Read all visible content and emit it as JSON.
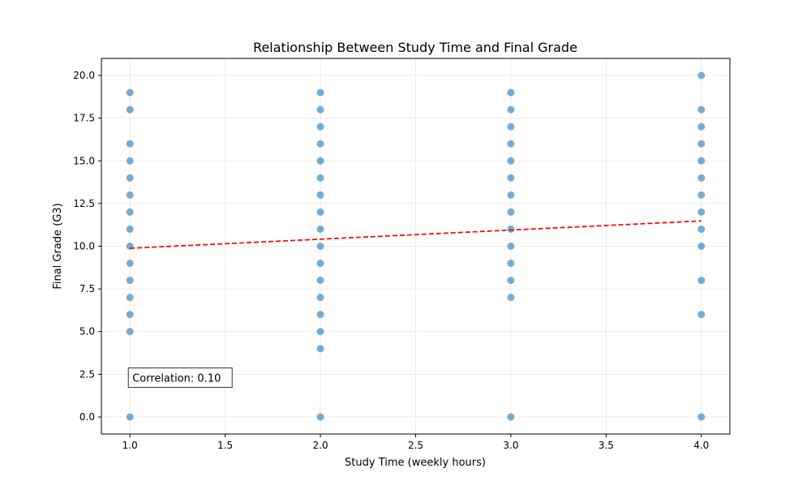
{
  "chart_data": {
    "type": "scatter",
    "title": "Relationship Between Study Time and Final Grade",
    "xlabel": "Study Time (weekly hours)",
    "ylabel": "Final Grade (G3)",
    "xlim": [
      0.85,
      4.15
    ],
    "ylim": [
      -1,
      21
    ],
    "xticks": [
      1.0,
      1.5,
      2.0,
      2.5,
      3.0,
      3.5,
      4.0
    ],
    "yticks": [
      0.0,
      2.5,
      5.0,
      7.5,
      10.0,
      12.5,
      15.0,
      17.5,
      20.0
    ],
    "grid": true,
    "series": [
      {
        "style": "points",
        "color": "#1f77b4",
        "points": [
          [
            1,
            0
          ],
          [
            1,
            5
          ],
          [
            1,
            6
          ],
          [
            1,
            7
          ],
          [
            1,
            8
          ],
          [
            1,
            9
          ],
          [
            1,
            10
          ],
          [
            1,
            11
          ],
          [
            1,
            12
          ],
          [
            1,
            13
          ],
          [
            1,
            14
          ],
          [
            1,
            15
          ],
          [
            1,
            16
          ],
          [
            1,
            18
          ],
          [
            1,
            19
          ],
          [
            2,
            0
          ],
          [
            2,
            4
          ],
          [
            2,
            5
          ],
          [
            2,
            6
          ],
          [
            2,
            7
          ],
          [
            2,
            8
          ],
          [
            2,
            9
          ],
          [
            2,
            10
          ],
          [
            2,
            11
          ],
          [
            2,
            12
          ],
          [
            2,
            13
          ],
          [
            2,
            14
          ],
          [
            2,
            15
          ],
          [
            2,
            16
          ],
          [
            2,
            17
          ],
          [
            2,
            18
          ],
          [
            2,
            19
          ],
          [
            3,
            0
          ],
          [
            3,
            7
          ],
          [
            3,
            8
          ],
          [
            3,
            9
          ],
          [
            3,
            10
          ],
          [
            3,
            11
          ],
          [
            3,
            12
          ],
          [
            3,
            13
          ],
          [
            3,
            14
          ],
          [
            3,
            15
          ],
          [
            3,
            16
          ],
          [
            3,
            17
          ],
          [
            3,
            18
          ],
          [
            3,
            19
          ],
          [
            4,
            0
          ],
          [
            4,
            6
          ],
          [
            4,
            8
          ],
          [
            4,
            10
          ],
          [
            4,
            11
          ],
          [
            4,
            12
          ],
          [
            4,
            13
          ],
          [
            4,
            14
          ],
          [
            4,
            15
          ],
          [
            4,
            16
          ],
          [
            4,
            17
          ],
          [
            4,
            18
          ],
          [
            4,
            20
          ]
        ]
      },
      {
        "style": "trend-line",
        "color": "#ff0000",
        "x": [
          1.0,
          4.0
        ],
        "y": [
          9.88,
          11.48
        ]
      }
    ],
    "annotations": [
      {
        "text": "Correlation: 0.10",
        "x": 1.0,
        "y": 2.3
      }
    ]
  }
}
